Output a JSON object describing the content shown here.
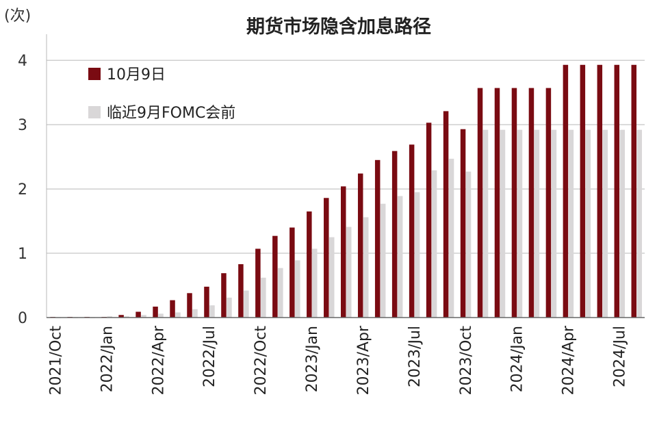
{
  "chart_data": {
    "type": "bar",
    "title": "期货市场隐含加息路径",
    "unit_label": "(次)",
    "ylim": [
      0,
      4.3
    ],
    "yticks": [
      0,
      1,
      2,
      3,
      4
    ],
    "grid": true,
    "legend_placement": "top-left",
    "x_tick_labels": [
      {
        "index": 0,
        "label": "2021/Oct"
      },
      {
        "index": 3,
        "label": "2022/Jan"
      },
      {
        "index": 6,
        "label": "2022/Apr"
      },
      {
        "index": 9,
        "label": "2022/Jul"
      },
      {
        "index": 12,
        "label": "2022/Oct"
      },
      {
        "index": 15,
        "label": "2023/Jan"
      },
      {
        "index": 18,
        "label": "2023/Apr"
      },
      {
        "index": 21,
        "label": "2023/Jul"
      },
      {
        "index": 24,
        "label": "2023/Oct"
      },
      {
        "index": 27,
        "label": "2024/Jan"
      },
      {
        "index": 30,
        "label": "2024/Apr"
      },
      {
        "index": 33,
        "label": "2024/Jul"
      }
    ],
    "series": [
      {
        "name": "10月9日",
        "color": "#7a0b12",
        "values": [
          0.01,
          0.01,
          0.01,
          0.01,
          0.04,
          0.09,
          0.17,
          0.27,
          0.38,
          0.48,
          0.69,
          0.83,
          1.07,
          1.27,
          1.4,
          1.65,
          1.86,
          2.04,
          2.24,
          2.45,
          2.59,
          2.69,
          3.03,
          3.21,
          2.93,
          3.57,
          3.57,
          3.57,
          3.57,
          3.57,
          3.93,
          3.93,
          3.93,
          3.93,
          3.93
        ]
      },
      {
        "name": "临近9月FOMC会前",
        "color": "#d9d7d8",
        "values": [
          0.0,
          0.0,
          0.0,
          0.02,
          0.02,
          0.04,
          0.06,
          0.08,
          0.13,
          0.19,
          0.31,
          0.42,
          0.62,
          0.77,
          0.89,
          1.07,
          1.25,
          1.41,
          1.56,
          1.77,
          1.89,
          1.95,
          2.29,
          2.47,
          2.27,
          2.92,
          2.92,
          2.92,
          2.92,
          2.92,
          2.92,
          2.92,
          2.92,
          2.92,
          2.92
        ]
      }
    ]
  }
}
